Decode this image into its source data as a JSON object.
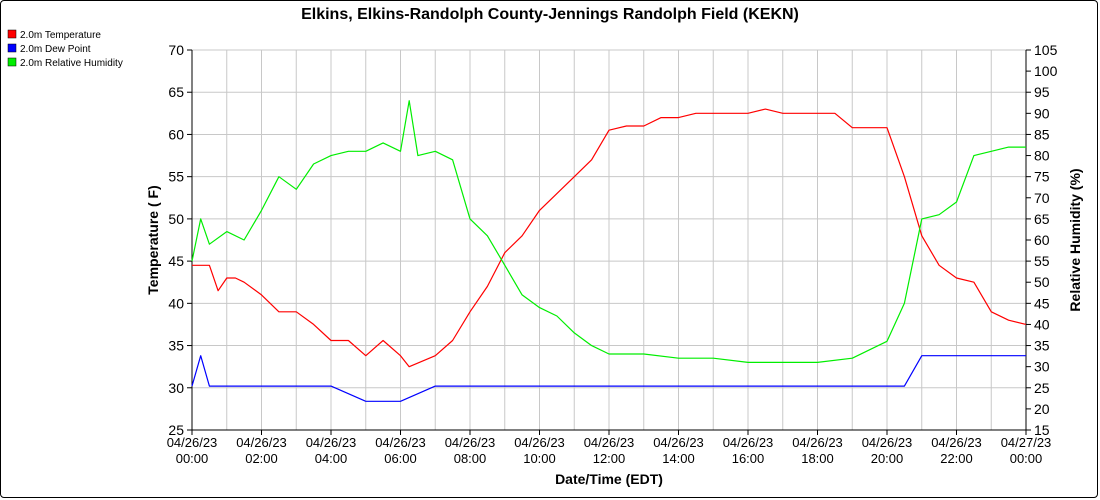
{
  "chart_data": {
    "type": "line",
    "title": "Elkins, Elkins-Randolph County-Jennings Randolph Field (KEKN)",
    "xlabel": "Date/Time (EDT)",
    "ylabel_left": "Temperature ( F)",
    "ylabel_right": "Relative Humidity (%)",
    "ylim_left": [
      25,
      70
    ],
    "yticks_left": [
      25,
      30,
      35,
      40,
      45,
      50,
      55,
      60,
      65,
      70
    ],
    "ylim_right": [
      15,
      105
    ],
    "yticks_right": [
      15,
      20,
      25,
      30,
      35,
      40,
      45,
      50,
      55,
      60,
      65,
      70,
      75,
      80,
      85,
      90,
      95,
      100,
      105
    ],
    "xlim_hours": [
      0,
      24
    ],
    "x_ticks": [
      {
        "date": "04/26/23",
        "time": "00:00"
      },
      {
        "date": "04/26/23",
        "time": "02:00"
      },
      {
        "date": "04/26/23",
        "time": "04:00"
      },
      {
        "date": "04/26/23",
        "time": "06:00"
      },
      {
        "date": "04/26/23",
        "time": "08:00"
      },
      {
        "date": "04/26/23",
        "time": "10:00"
      },
      {
        "date": "04/26/23",
        "time": "12:00"
      },
      {
        "date": "04/26/23",
        "time": "14:00"
      },
      {
        "date": "04/26/23",
        "time": "16:00"
      },
      {
        "date": "04/26/23",
        "time": "18:00"
      },
      {
        "date": "04/26/23",
        "time": "20:00"
      },
      {
        "date": "04/26/23",
        "time": "22:00"
      },
      {
        "date": "04/27/23",
        "time": "00:00"
      }
    ],
    "grid": true,
    "legend_position": "top-left",
    "series": [
      {
        "name": "2.0m Temperature",
        "color": "#ff0000",
        "axis": "left",
        "x": [
          "04/26/23 00:00",
          "04/26/23 00:30",
          "04/26/23 00:45",
          "04/26/23 01:00",
          "04/26/23 01:15",
          "04/26/23 01:30",
          "04/26/23 02:00",
          "04/26/23 02:30",
          "04/26/23 03:00",
          "04/26/23 03:30",
          "04/26/23 04:00",
          "04/26/23 04:30",
          "04/26/23 05:00",
          "04/26/23 05:30",
          "04/26/23 06:00",
          "04/26/23 06:15",
          "04/26/23 07:00",
          "04/26/23 07:30",
          "04/26/23 08:00",
          "04/26/23 08:30",
          "04/26/23 09:00",
          "04/26/23 09:30",
          "04/26/23 10:00",
          "04/26/23 10:30",
          "04/26/23 11:00",
          "04/26/23 11:30",
          "04/26/23 12:00",
          "04/26/23 12:30",
          "04/26/23 13:00",
          "04/26/23 13:30",
          "04/26/23 14:00",
          "04/26/23 14:30",
          "04/26/23 15:00",
          "04/26/23 15:30",
          "04/26/23 16:00",
          "04/26/23 16:30",
          "04/26/23 17:00",
          "04/26/23 17:30",
          "04/26/23 18:00",
          "04/26/23 18:30",
          "04/26/23 19:00",
          "04/26/23 19:30",
          "04/26/23 20:00",
          "04/26/23 20:30",
          "04/26/23 21:00",
          "04/26/23 21:30",
          "04/26/23 22:00",
          "04/26/23 22:30",
          "04/26/23 23:00",
          "04/26/23 23:30",
          "04/27/23 00:00"
        ],
        "values": [
          44.5,
          44.5,
          41.5,
          43,
          43,
          42.5,
          41,
          39,
          39,
          37.5,
          35.6,
          35.6,
          33.8,
          35.6,
          33.8,
          32.5,
          33.8,
          35.6,
          39,
          42,
          46,
          48,
          51,
          53,
          55,
          57,
          60.5,
          61,
          61,
          62,
          62,
          62.5,
          62.5,
          62.5,
          62.5,
          63,
          62.5,
          62.5,
          62.5,
          62.5,
          60.8,
          60.8,
          60.8,
          55,
          48,
          44.5,
          43,
          42.5,
          39,
          38,
          37.5
        ]
      },
      {
        "name": "2.0m Dew Point",
        "color": "#0000ff",
        "axis": "left",
        "x": [
          "04/26/23 00:00",
          "04/26/23 00:15",
          "04/26/23 00:30",
          "04/26/23 01:00",
          "04/26/23 02:00",
          "04/26/23 03:00",
          "04/26/23 04:00",
          "04/26/23 05:00",
          "04/26/23 06:00",
          "04/26/23 07:00",
          "04/26/23 08:00",
          "04/26/23 09:00",
          "04/26/23 10:00",
          "04/26/23 11:00",
          "04/26/23 12:00",
          "04/26/23 13:00",
          "04/26/23 14:00",
          "04/26/23 15:00",
          "04/26/23 16:00",
          "04/26/23 17:00",
          "04/26/23 18:00",
          "04/26/23 19:00",
          "04/26/23 20:00",
          "04/26/23 20:30",
          "04/26/23 21:00",
          "04/26/23 21:30",
          "04/26/23 22:00",
          "04/26/23 23:00",
          "04/27/23 00:00"
        ],
        "values": [
          30.2,
          33.8,
          30.2,
          30.2,
          30.2,
          30.2,
          30.2,
          28.4,
          28.4,
          30.2,
          30.2,
          30.2,
          30.2,
          30.2,
          30.2,
          30.2,
          30.2,
          30.2,
          30.2,
          30.2,
          30.2,
          30.2,
          30.2,
          30.2,
          33.8,
          33.8,
          33.8,
          33.8,
          33.8
        ]
      },
      {
        "name": "2.0m Relative Humidity",
        "color": "#00ee00",
        "axis": "right",
        "x": [
          "04/26/23 00:00",
          "04/26/23 00:15",
          "04/26/23 00:30",
          "04/26/23 01:00",
          "04/26/23 01:30",
          "04/26/23 02:00",
          "04/26/23 02:30",
          "04/26/23 03:00",
          "04/26/23 03:30",
          "04/26/23 04:00",
          "04/26/23 04:30",
          "04/26/23 05:00",
          "04/26/23 05:30",
          "04/26/23 06:00",
          "04/26/23 06:15",
          "04/26/23 06:30",
          "04/26/23 07:00",
          "04/26/23 07:30",
          "04/26/23 08:00",
          "04/26/23 08:30",
          "04/26/23 09:00",
          "04/26/23 09:30",
          "04/26/23 10:00",
          "04/26/23 10:30",
          "04/26/23 11:00",
          "04/26/23 11:30",
          "04/26/23 12:00",
          "04/26/23 13:00",
          "04/26/23 14:00",
          "04/26/23 15:00",
          "04/26/23 16:00",
          "04/26/23 17:00",
          "04/26/23 18:00",
          "04/26/23 19:00",
          "04/26/23 20:00",
          "04/26/23 20:30",
          "04/26/23 21:00",
          "04/26/23 21:30",
          "04/26/23 22:00",
          "04/26/23 22:30",
          "04/26/23 23:00",
          "04/26/23 23:30",
          "04/27/23 00:00"
        ],
        "values": [
          55,
          65,
          59,
          62,
          60,
          67,
          75,
          72,
          78,
          80,
          81,
          81,
          83,
          81,
          93,
          80,
          81,
          79,
          65,
          61,
          54,
          47,
          44,
          42,
          38,
          35,
          33,
          33,
          32,
          32,
          31,
          31,
          31,
          32,
          36,
          45,
          65,
          66,
          69,
          80,
          81,
          82,
          82
        ]
      }
    ]
  }
}
